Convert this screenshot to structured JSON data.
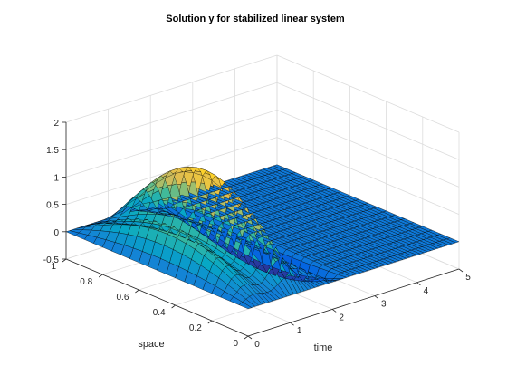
{
  "chart_data": {
    "type": "surface",
    "title": "Solution y for stabilized linear system",
    "xlabel": "time",
    "ylabel": "space",
    "zlabel": "",
    "xlim": [
      0,
      5
    ],
    "ylim": [
      0,
      1
    ],
    "zlim": [
      -0.5,
      2
    ],
    "x_ticks": [
      "0",
      "1",
      "2",
      "3",
      "4",
      "5"
    ],
    "y_ticks": [
      "0",
      "0.2",
      "0.4",
      "0.6",
      "0.8",
      "1"
    ],
    "z_ticks": [
      "-0.5",
      "0",
      "0.5",
      "1",
      "1.5",
      "2"
    ],
    "grid": true,
    "colormap": [
      "#352a87",
      "#0363e1",
      "#1485d4",
      "#06a7c6",
      "#38b99e",
      "#92bf73",
      "#d9ba56",
      "#fcce2e",
      "#f9fb0e"
    ],
    "surface_samples": [
      {
        "time": 0.0,
        "space": 0.5,
        "y": 0.0
      },
      {
        "time": 0.45,
        "space": 0.5,
        "y": 0.9
      },
      {
        "time": 1.0,
        "space": 0.5,
        "y": 1.7
      },
      {
        "time": 1.5,
        "space": 0.5,
        "y": 1.3
      },
      {
        "time": 2.0,
        "space": 0.5,
        "y": 0.0
      },
      {
        "time": 2.5,
        "space": 0.5,
        "y": 0.0
      },
      {
        "time": 5.0,
        "space": 0.5,
        "y": 0.0
      }
    ]
  }
}
